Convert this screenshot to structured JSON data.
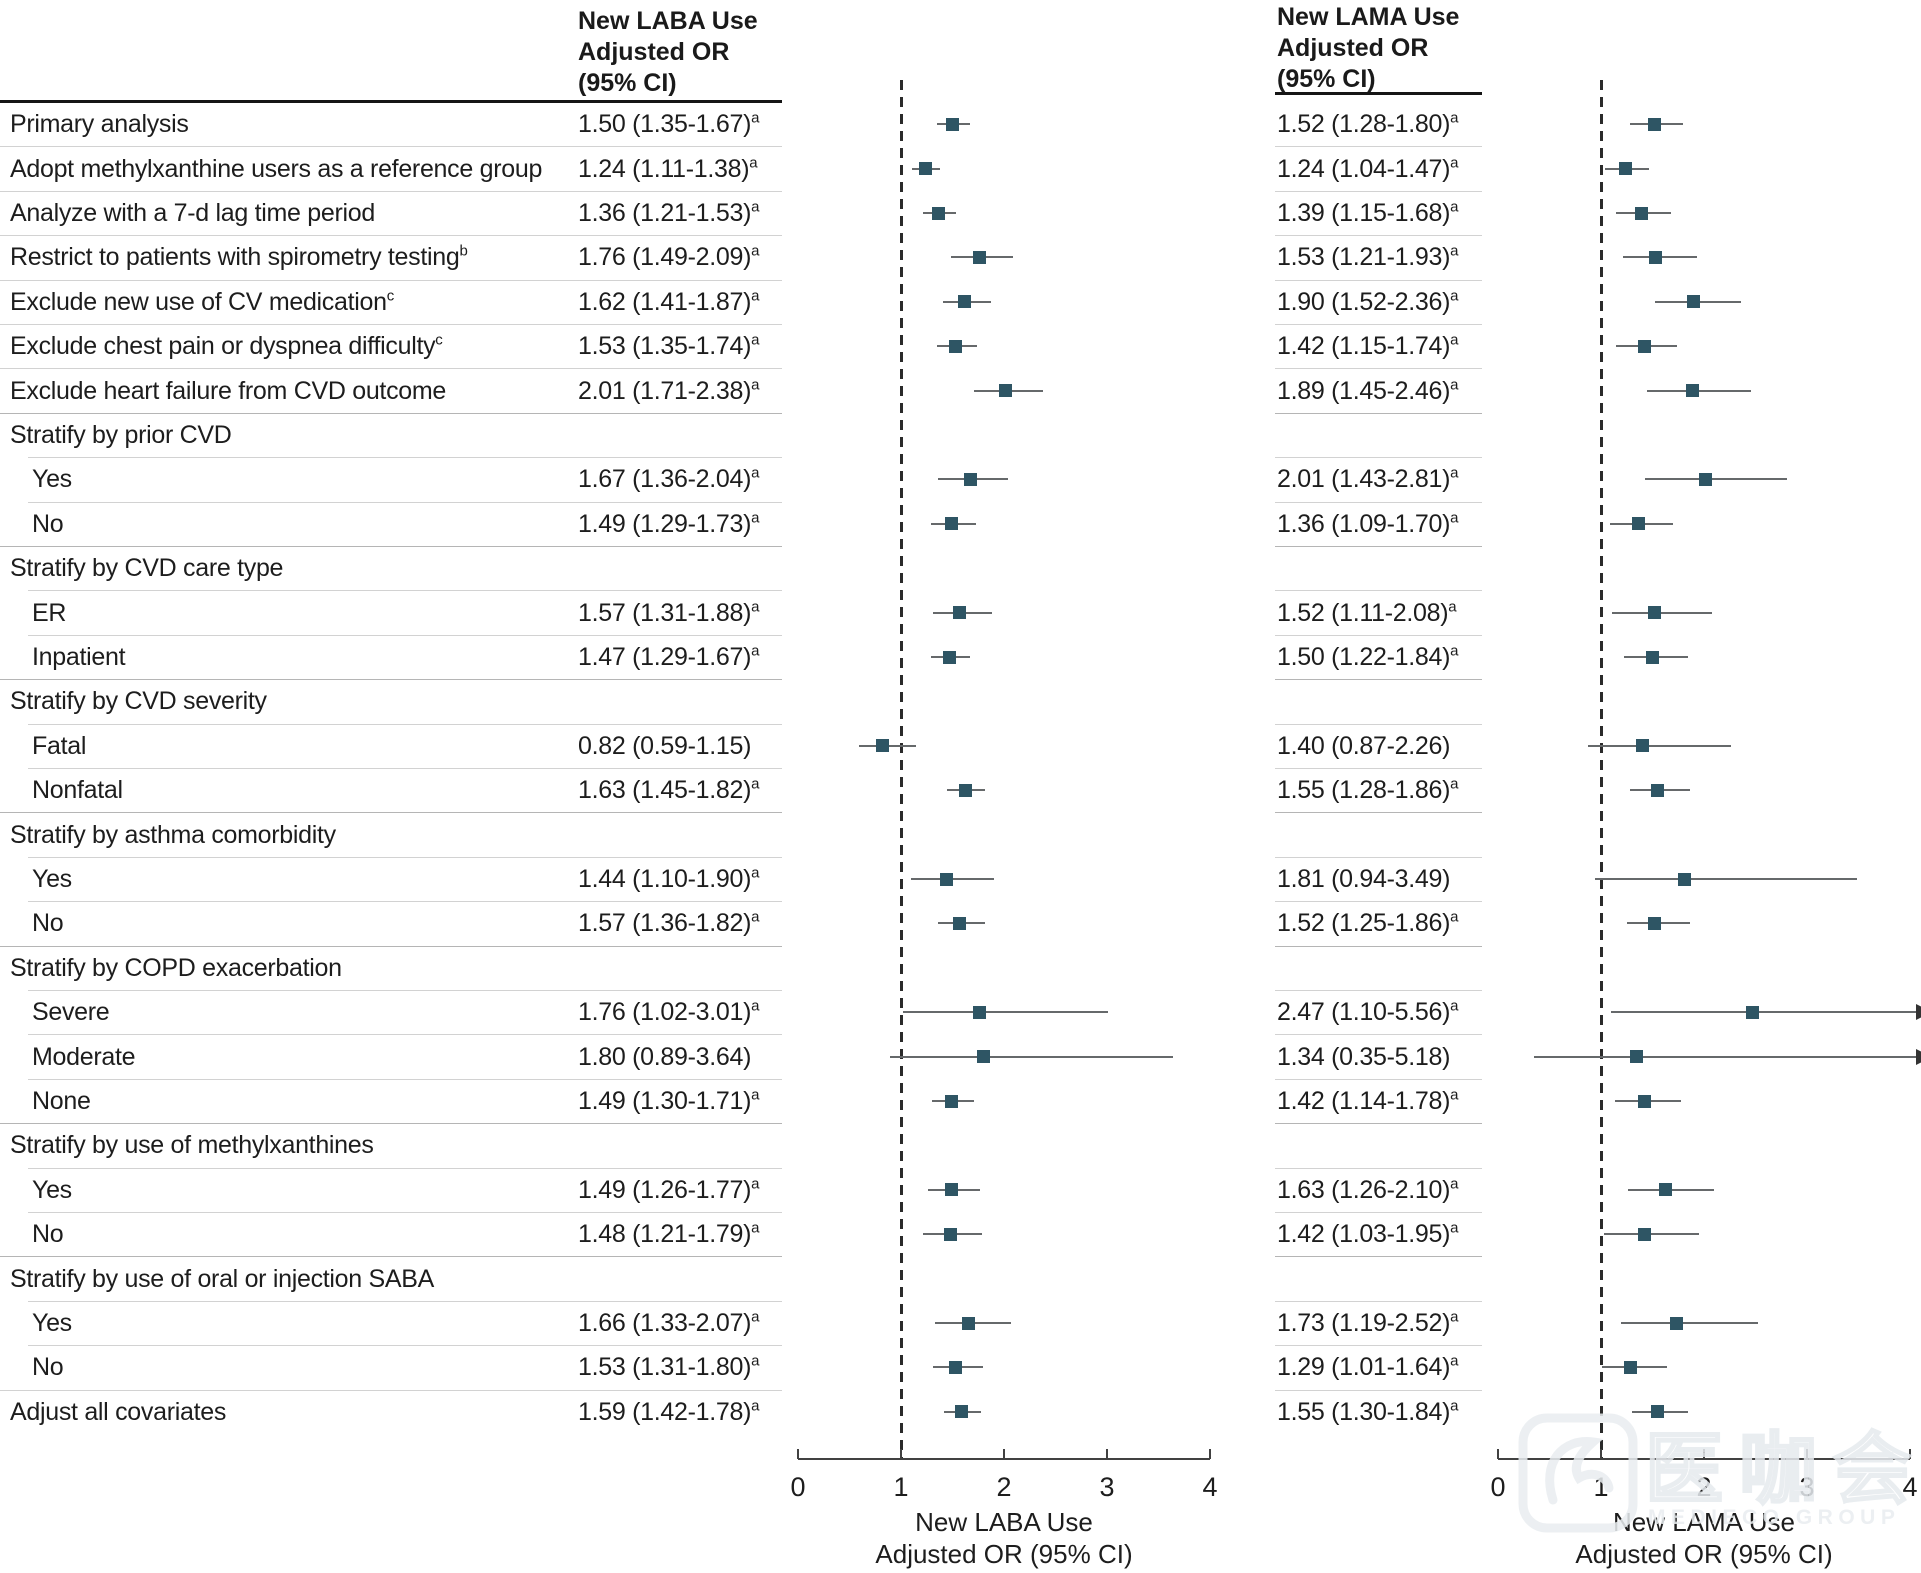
{
  "columns": {
    "laba_header": [
      "New LABA Use",
      "Adjusted OR",
      "(95% CI)"
    ],
    "lama_header": [
      "New LAMA Use",
      "Adjusted OR",
      "(95% CI)"
    ]
  },
  "axis": {
    "ticks": [
      0,
      1,
      2,
      3,
      4
    ],
    "ref_line": 1,
    "laba_title": [
      "New LABA Use",
      "Adjusted OR (95% CI)"
    ],
    "lama_title": [
      "New LAMA Use",
      "Adjusted OR (95% CI)"
    ]
  },
  "colors": {
    "marker": "#2E5564",
    "ci_line": "#66696b",
    "separator": "#d2d2d2",
    "separator_group": "#b5b5b5",
    "header_rule": "#151515",
    "text": "#1d1d1d"
  },
  "watermark": {
    "cjk": "医咖会",
    "latin": "MEDIECO GROUP"
  },
  "rows": [
    {
      "label": "Primary analysis",
      "indent": false,
      "group": false,
      "laba": "1.50 (1.35-1.67)",
      "laba_sup": "a",
      "lama": "1.52 (1.28-1.80)",
      "lama_sup": "a"
    },
    {
      "label": "Adopt methylxanthine users as a reference group",
      "indent": false,
      "group": false,
      "laba": "1.24 (1.11-1.38)",
      "laba_sup": "a",
      "lama": "1.24 (1.04-1.47)",
      "lama_sup": "a"
    },
    {
      "label": "Analyze with a 7-d lag time period",
      "indent": false,
      "group": false,
      "laba": "1.36 (1.21-1.53)",
      "laba_sup": "a",
      "lama": "1.39 (1.15-1.68)",
      "lama_sup": "a"
    },
    {
      "label": "Restrict to patients with spirometry testing",
      "label_sup": "b",
      "indent": false,
      "group": false,
      "laba": "1.76 (1.49-2.09)",
      "laba_sup": "a",
      "lama": "1.53 (1.21-1.93)",
      "lama_sup": "a"
    },
    {
      "label": "Exclude new use of CV medication",
      "label_sup": "c",
      "indent": false,
      "group": false,
      "laba": "1.62 (1.41-1.87)",
      "laba_sup": "a",
      "lama": "1.90 (1.52-2.36)",
      "lama_sup": "a"
    },
    {
      "label": "Exclude chest pain or dyspnea difficulty",
      "label_sup": "c",
      "indent": false,
      "group": false,
      "laba": "1.53 (1.35-1.74)",
      "laba_sup": "a",
      "lama": "1.42 (1.15-1.74)",
      "lama_sup": "a"
    },
    {
      "label": "Exclude heart failure from CVD outcome",
      "indent": false,
      "group": false,
      "laba": "2.01 (1.71-2.38)",
      "laba_sup": "a",
      "lama": "1.89 (1.45-2.46)",
      "lama_sup": "a"
    },
    {
      "label": "Stratify by prior CVD",
      "indent": false,
      "group": true,
      "laba": "",
      "lama": ""
    },
    {
      "label": "Yes",
      "indent": true,
      "group": false,
      "laba": "1.67 (1.36-2.04)",
      "laba_sup": "a",
      "lama": "2.01 (1.43-2.81)",
      "lama_sup": "a"
    },
    {
      "label": "No",
      "indent": true,
      "group": false,
      "laba": "1.49 (1.29-1.73)",
      "laba_sup": "a",
      "lama": "1.36 (1.09-1.70)",
      "lama_sup": "a"
    },
    {
      "label": "Stratify by CVD care type",
      "indent": false,
      "group": true,
      "laba": "",
      "lama": ""
    },
    {
      "label": "ER",
      "indent": true,
      "group": false,
      "laba": "1.57 (1.31-1.88)",
      "laba_sup": "a",
      "lama": "1.52 (1.11-2.08)",
      "lama_sup": "a"
    },
    {
      "label": "Inpatient",
      "indent": true,
      "group": false,
      "laba": "1.47 (1.29-1.67)",
      "laba_sup": "a",
      "lama": "1.50 (1.22-1.84)",
      "lama_sup": "a"
    },
    {
      "label": "Stratify by CVD severity",
      "indent": false,
      "group": true,
      "laba": "",
      "lama": ""
    },
    {
      "label": "Fatal",
      "indent": true,
      "group": false,
      "laba": "0.82 (0.59-1.15)",
      "laba_sup": "",
      "lama": "1.40 (0.87-2.26)",
      "lama_sup": ""
    },
    {
      "label": "Nonfatal",
      "indent": true,
      "group": false,
      "laba": "1.63 (1.45-1.82)",
      "laba_sup": "a",
      "lama": "1.55 (1.28-1.86)",
      "lama_sup": "a"
    },
    {
      "label": "Stratify by asthma comorbidity",
      "indent": false,
      "group": true,
      "laba": "",
      "lama": ""
    },
    {
      "label": "Yes",
      "indent": true,
      "group": false,
      "laba": "1.44 (1.10-1.90)",
      "laba_sup": "a",
      "lama": "1.81 (0.94-3.49)",
      "lama_sup": ""
    },
    {
      "label": "No",
      "indent": true,
      "group": false,
      "laba": "1.57 (1.36-1.82)",
      "laba_sup": "a",
      "lama": "1.52 (1.25-1.86)",
      "lama_sup": "a"
    },
    {
      "label": "Stratify by COPD exacerbation",
      "indent": false,
      "group": true,
      "laba": "",
      "lama": ""
    },
    {
      "label": "Severe",
      "indent": true,
      "group": false,
      "laba": "1.76 (1.02-3.01)",
      "laba_sup": "a",
      "lama": "2.47 (1.10-5.56)",
      "lama_sup": "a"
    },
    {
      "label": "Moderate",
      "indent": true,
      "group": false,
      "laba": "1.80 (0.89-3.64)",
      "laba_sup": "",
      "lama": "1.34 (0.35-5.18)",
      "lama_sup": ""
    },
    {
      "label": "None",
      "indent": true,
      "group": false,
      "laba": "1.49 (1.30-1.71)",
      "laba_sup": "a",
      "lama": "1.42 (1.14-1.78)",
      "lama_sup": "a"
    },
    {
      "label": "Stratify by use of methylxanthines",
      "indent": false,
      "group": true,
      "laba": "",
      "lama": ""
    },
    {
      "label": "Yes",
      "indent": true,
      "group": false,
      "laba": "1.49 (1.26-1.77)",
      "laba_sup": "a",
      "lama": "1.63 (1.26-2.10)",
      "lama_sup": "a"
    },
    {
      "label": "No",
      "indent": true,
      "group": false,
      "laba": "1.48 (1.21-1.79)",
      "laba_sup": "a",
      "lama": "1.42 (1.03-1.95)",
      "lama_sup": "a"
    },
    {
      "label": "Stratify by use of oral or injection SABA",
      "indent": false,
      "group": true,
      "laba": "",
      "lama": ""
    },
    {
      "label": "Yes",
      "indent": true,
      "group": false,
      "laba": "1.66 (1.33-2.07)",
      "laba_sup": "a",
      "lama": "1.73 (1.19-2.52)",
      "lama_sup": "a"
    },
    {
      "label": "No",
      "indent": true,
      "group": false,
      "laba": "1.53 (1.31-1.80)",
      "laba_sup": "a",
      "lama": "1.29 (1.01-1.64)",
      "lama_sup": "a"
    },
    {
      "label": "Adjust all covariates",
      "indent": false,
      "group": false,
      "laba": "1.59 (1.42-1.78)",
      "laba_sup": "a",
      "lama": "1.55 (1.30-1.84)",
      "lama_sup": "a"
    }
  ],
  "chart_data": [
    {
      "type": "scatter",
      "title": "New LABA Use Adjusted OR (95% CI)",
      "xlabel": "New LABA Use Adjusted OR (95% CI)",
      "xlim": [
        0,
        4
      ],
      "ref_line_x": 1,
      "legend": "none",
      "categories": [
        "Primary analysis",
        "Adopt methylxanthine users as a reference group",
        "Analyze with a 7-d lag time period",
        "Restrict to patients with spirometry testing",
        "Exclude new use of CV medication",
        "Exclude chest pain or dyspnea difficulty",
        "Exclude heart failure from CVD outcome",
        "Stratify by prior CVD",
        "Yes",
        "No",
        "Stratify by CVD care type",
        "ER",
        "Inpatient",
        "Stratify by CVD severity",
        "Fatal",
        "Nonfatal",
        "Stratify by asthma comorbidity",
        "Yes",
        "No",
        "Stratify by COPD exacerbation",
        "Severe",
        "Moderate",
        "None",
        "Stratify by use of methylxanthines",
        "Yes",
        "No",
        "Stratify by use of oral or injection SABA",
        "Yes",
        "No",
        "Adjust all covariates"
      ],
      "points": [
        {
          "or": 1.5,
          "lo": 1.35,
          "hi": 1.67
        },
        {
          "or": 1.24,
          "lo": 1.11,
          "hi": 1.38
        },
        {
          "or": 1.36,
          "lo": 1.21,
          "hi": 1.53
        },
        {
          "or": 1.76,
          "lo": 1.49,
          "hi": 2.09
        },
        {
          "or": 1.62,
          "lo": 1.41,
          "hi": 1.87
        },
        {
          "or": 1.53,
          "lo": 1.35,
          "hi": 1.74
        },
        {
          "or": 2.01,
          "lo": 1.71,
          "hi": 2.38
        },
        null,
        {
          "or": 1.67,
          "lo": 1.36,
          "hi": 2.04
        },
        {
          "or": 1.49,
          "lo": 1.29,
          "hi": 1.73
        },
        null,
        {
          "or": 1.57,
          "lo": 1.31,
          "hi": 1.88
        },
        {
          "or": 1.47,
          "lo": 1.29,
          "hi": 1.67
        },
        null,
        {
          "or": 0.82,
          "lo": 0.59,
          "hi": 1.15
        },
        {
          "or": 1.63,
          "lo": 1.45,
          "hi": 1.82
        },
        null,
        {
          "or": 1.44,
          "lo": 1.1,
          "hi": 1.9
        },
        {
          "or": 1.57,
          "lo": 1.36,
          "hi": 1.82
        },
        null,
        {
          "or": 1.76,
          "lo": 1.02,
          "hi": 3.01
        },
        {
          "or": 1.8,
          "lo": 0.89,
          "hi": 3.64
        },
        {
          "or": 1.49,
          "lo": 1.3,
          "hi": 1.71
        },
        null,
        {
          "or": 1.49,
          "lo": 1.26,
          "hi": 1.77
        },
        {
          "or": 1.48,
          "lo": 1.21,
          "hi": 1.79
        },
        null,
        {
          "or": 1.66,
          "lo": 1.33,
          "hi": 2.07
        },
        {
          "or": 1.53,
          "lo": 1.31,
          "hi": 1.8
        },
        {
          "or": 1.59,
          "lo": 1.42,
          "hi": 1.78
        }
      ]
    },
    {
      "type": "scatter",
      "title": "New LAMA Use Adjusted OR (95% CI)",
      "xlabel": "New LAMA Use Adjusted OR (95% CI)",
      "xlim": [
        0,
        4
      ],
      "ref_line_x": 1,
      "legend": "none",
      "categories": [
        "Primary analysis",
        "Adopt methylxanthine users as a reference group",
        "Analyze with a 7-d lag time period",
        "Restrict to patients with spirometry testing",
        "Exclude new use of CV medication",
        "Exclude chest pain or dyspnea difficulty",
        "Exclude heart failure from CVD outcome",
        "Stratify by prior CVD",
        "Yes",
        "No",
        "Stratify by CVD care type",
        "ER",
        "Inpatient",
        "Stratify by CVD severity",
        "Fatal",
        "Nonfatal",
        "Stratify by asthma comorbidity",
        "Yes",
        "No",
        "Stratify by COPD exacerbation",
        "Severe",
        "Moderate",
        "None",
        "Stratify by use of methylxanthines",
        "Yes",
        "No",
        "Stratify by use of oral or injection SABA",
        "Yes",
        "No",
        "Adjust all covariates"
      ],
      "points": [
        {
          "or": 1.52,
          "lo": 1.28,
          "hi": 1.8
        },
        {
          "or": 1.24,
          "lo": 1.04,
          "hi": 1.47
        },
        {
          "or": 1.39,
          "lo": 1.15,
          "hi": 1.68
        },
        {
          "or": 1.53,
          "lo": 1.21,
          "hi": 1.93
        },
        {
          "or": 1.9,
          "lo": 1.52,
          "hi": 2.36
        },
        {
          "or": 1.42,
          "lo": 1.15,
          "hi": 1.74
        },
        {
          "or": 1.89,
          "lo": 1.45,
          "hi": 2.46
        },
        null,
        {
          "or": 2.01,
          "lo": 1.43,
          "hi": 2.81
        },
        {
          "or": 1.36,
          "lo": 1.09,
          "hi": 1.7
        },
        null,
        {
          "or": 1.52,
          "lo": 1.11,
          "hi": 2.08
        },
        {
          "or": 1.5,
          "lo": 1.22,
          "hi": 1.84
        },
        null,
        {
          "or": 1.4,
          "lo": 0.87,
          "hi": 2.26
        },
        {
          "or": 1.55,
          "lo": 1.28,
          "hi": 1.86
        },
        null,
        {
          "or": 1.81,
          "lo": 0.94,
          "hi": 3.49
        },
        {
          "or": 1.52,
          "lo": 1.25,
          "hi": 1.86
        },
        null,
        {
          "or": 2.47,
          "lo": 1.1,
          "hi": 5.56,
          "clip": true
        },
        {
          "or": 1.34,
          "lo": 0.35,
          "hi": 5.18,
          "clip": true
        },
        {
          "or": 1.42,
          "lo": 1.14,
          "hi": 1.78
        },
        null,
        {
          "or": 1.63,
          "lo": 1.26,
          "hi": 2.1
        },
        {
          "or": 1.42,
          "lo": 1.03,
          "hi": 1.95
        },
        null,
        {
          "or": 1.73,
          "lo": 1.19,
          "hi": 2.52
        },
        {
          "or": 1.29,
          "lo": 1.01,
          "hi": 1.64
        },
        {
          "or": 1.55,
          "lo": 1.3,
          "hi": 1.84
        }
      ]
    }
  ]
}
